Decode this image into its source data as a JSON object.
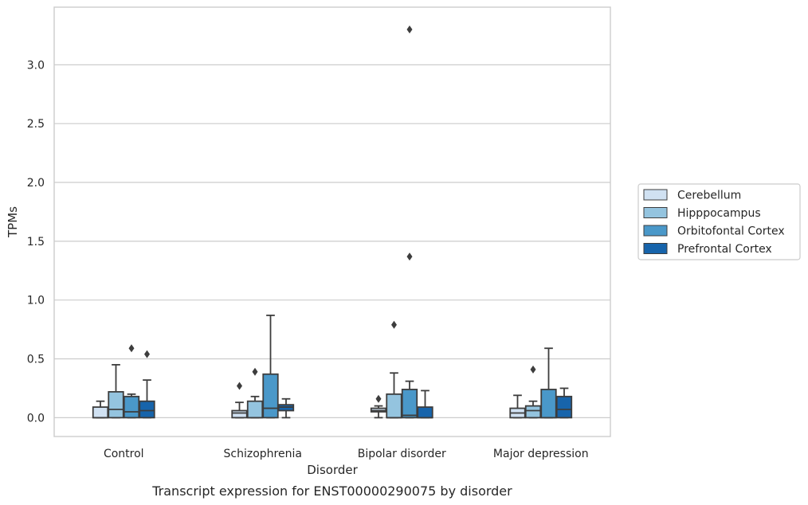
{
  "caption": "Transcript expression for ENST00000290075 by disorder",
  "chart_data": {
    "type": "box",
    "xlabel": "Disorder",
    "ylabel": "TPMs",
    "ylim": [
      -0.16,
      3.49
    ],
    "yticks": [
      "0.0",
      "0.5",
      "1.0",
      "1.5",
      "2.0",
      "2.5",
      "3.0"
    ],
    "grid": "horizontal",
    "legend_position": "right",
    "categories": [
      "Control",
      "Schizophrenia",
      "Bipolar disorder",
      "Major depression"
    ],
    "series": [
      {
        "name": "Cerebellum",
        "color": "#d0e1f2",
        "boxes": [
          {
            "whislo": 0.0,
            "q1": 0.0,
            "med": 0.0,
            "q3": 0.09,
            "whishi": 0.14,
            "fliers": []
          },
          {
            "whislo": 0.0,
            "q1": 0.0,
            "med": 0.04,
            "q3": 0.06,
            "whishi": 0.13,
            "fliers": [
              0.27
            ]
          },
          {
            "whislo": 0.0,
            "q1": 0.05,
            "med": 0.06,
            "q3": 0.08,
            "whishi": 0.1,
            "fliers": [
              0.16
            ]
          },
          {
            "whislo": 0.0,
            "q1": 0.0,
            "med": 0.04,
            "q3": 0.08,
            "whishi": 0.19,
            "fliers": []
          }
        ]
      },
      {
        "name": "Hipppocampus",
        "color": "#94c4df",
        "boxes": [
          {
            "whislo": 0.0,
            "q1": 0.0,
            "med": 0.07,
            "q3": 0.22,
            "whishi": 0.45,
            "fliers": []
          },
          {
            "whislo": 0.0,
            "q1": 0.0,
            "med": 0.0,
            "q3": 0.14,
            "whishi": 0.18,
            "fliers": [
              0.39
            ]
          },
          {
            "whislo": 0.0,
            "q1": 0.0,
            "med": 0.0,
            "q3": 0.2,
            "whishi": 0.38,
            "fliers": [
              0.79
            ]
          },
          {
            "whislo": 0.0,
            "q1": 0.0,
            "med": 0.06,
            "q3": 0.1,
            "whishi": 0.14,
            "fliers": [
              0.41
            ]
          }
        ]
      },
      {
        "name": "Orbitofontal Cortex",
        "color": "#4a98c9",
        "boxes": [
          {
            "whislo": 0.0,
            "q1": 0.0,
            "med": 0.05,
            "q3": 0.18,
            "whishi": 0.2,
            "fliers": [
              0.59
            ]
          },
          {
            "whislo": 0.0,
            "q1": 0.0,
            "med": 0.08,
            "q3": 0.37,
            "whishi": 0.87,
            "fliers": []
          },
          {
            "whislo": 0.0,
            "q1": 0.0,
            "med": 0.02,
            "q3": 0.24,
            "whishi": 0.31,
            "fliers": [
              1.37,
              3.3
            ]
          },
          {
            "whislo": 0.0,
            "q1": 0.0,
            "med": 0.0,
            "q3": 0.24,
            "whishi": 0.59,
            "fliers": []
          }
        ]
      },
      {
        "name": "Prefrontal Cortex",
        "color": "#1764ab",
        "boxes": [
          {
            "whislo": 0.0,
            "q1": 0.0,
            "med": 0.06,
            "q3": 0.14,
            "whishi": 0.32,
            "fliers": [
              0.54
            ]
          },
          {
            "whislo": 0.0,
            "q1": 0.06,
            "med": 0.09,
            "q3": 0.11,
            "whishi": 0.16,
            "fliers": []
          },
          {
            "whislo": 0.0,
            "q1": 0.0,
            "med": 0.0,
            "q3": 0.09,
            "whishi": 0.23,
            "fliers": []
          },
          {
            "whislo": 0.0,
            "q1": 0.0,
            "med": 0.07,
            "q3": 0.18,
            "whishi": 0.25,
            "fliers": []
          }
        ]
      }
    ]
  }
}
